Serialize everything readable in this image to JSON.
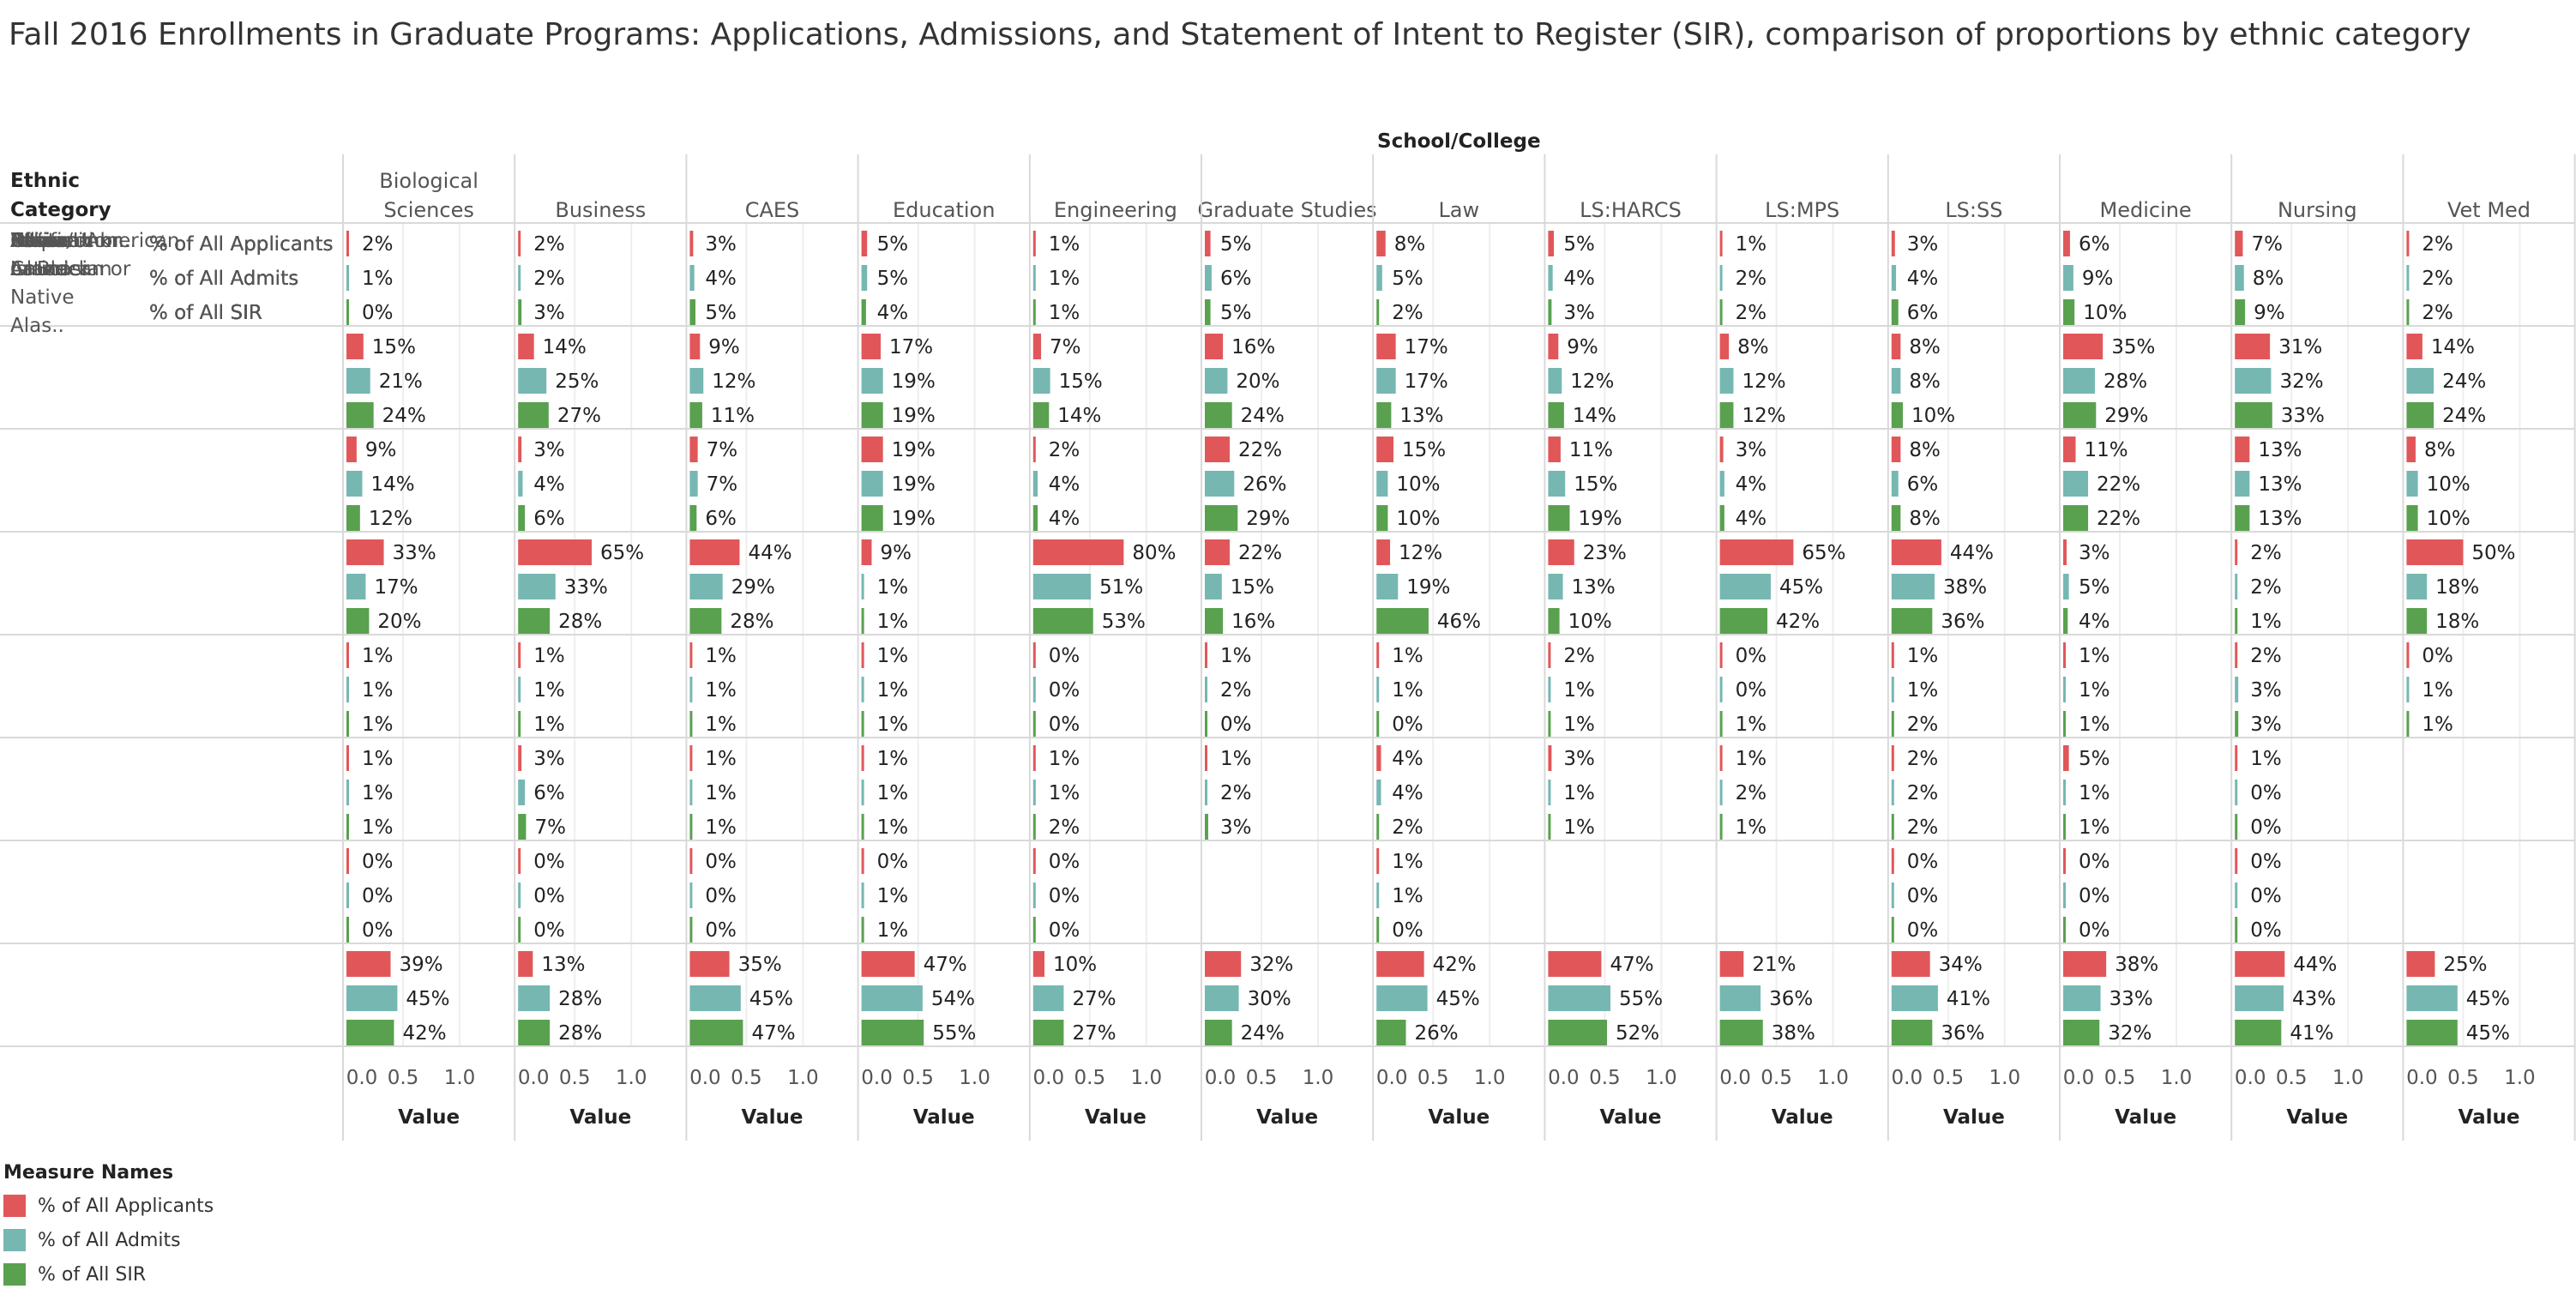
{
  "title": "Fall 2016 Enrollments in Graduate Programs:  Applications, Admissions, and Statement of Intent to Register (SIR), comparison of proportions by ethnic category",
  "legend": {
    "title": "Measure Names",
    "items": [
      {
        "label": "% of All Applicants",
        "color": "#e15759"
      },
      {
        "label": "% of All Admits",
        "color": "#76b7b2"
      },
      {
        "label": "% of All SIR",
        "color": "#59a14f"
      }
    ]
  },
  "chart_data": {
    "type": "bar",
    "orientation": "horizontal",
    "column_header": "School/College",
    "row_header": "Ethnic Category",
    "axis_title": "Value",
    "xlim": [
      0,
      1.0
    ],
    "ticks": [
      "0.0",
      "0.5",
      "1.0"
    ],
    "grid": true,
    "legend_position": "bottom-left",
    "colleges": [
      "Biological Sciences",
      "Business",
      "CAES",
      "Education",
      "Engineering",
      "Graduate Studies",
      "Law",
      "LS:HARCS",
      "LS:MPS",
      "LS:SS",
      "Medicine",
      "Nursing",
      "Vet Med"
    ],
    "measures": [
      {
        "name": "% of All Applicants",
        "color": "#e15759"
      },
      {
        "name": "% of All Admits",
        "color": "#76b7b2"
      },
      {
        "name": "% of All SIR",
        "color": "#59a14f"
      }
    ],
    "categories": [
      {
        "label": "African-American or Black",
        "values": [
          [
            0.02,
            0.01,
            0.0
          ],
          [
            0.02,
            0.02,
            0.03
          ],
          [
            0.03,
            0.04,
            0.05
          ],
          [
            0.05,
            0.05,
            0.04
          ],
          [
            0.01,
            0.01,
            0.01
          ],
          [
            0.05,
            0.06,
            0.05
          ],
          [
            0.08,
            0.05,
            0.02
          ],
          [
            0.05,
            0.04,
            0.03
          ],
          [
            0.01,
            0.02,
            0.02
          ],
          [
            0.03,
            0.04,
            0.06
          ],
          [
            0.06,
            0.09,
            0.1
          ],
          [
            0.07,
            0.08,
            0.09
          ],
          [
            0.02,
            0.02,
            0.02
          ]
        ]
      },
      {
        "label": "Asian",
        "values": [
          [
            0.15,
            0.21,
            0.24
          ],
          [
            0.14,
            0.25,
            0.27
          ],
          [
            0.09,
            0.12,
            0.11
          ],
          [
            0.17,
            0.19,
            0.19
          ],
          [
            0.07,
            0.15,
            0.14
          ],
          [
            0.16,
            0.2,
            0.24
          ],
          [
            0.17,
            0.17,
            0.13
          ],
          [
            0.09,
            0.12,
            0.14
          ],
          [
            0.08,
            0.12,
            0.12
          ],
          [
            0.08,
            0.08,
            0.1
          ],
          [
            0.35,
            0.28,
            0.29
          ],
          [
            0.31,
            0.32,
            0.33
          ],
          [
            0.14,
            0.24,
            0.24
          ]
        ]
      },
      {
        "label": "Hispanic or Latino",
        "values": [
          [
            0.09,
            0.14,
            0.12
          ],
          [
            0.03,
            0.04,
            0.06
          ],
          [
            0.07,
            0.07,
            0.06
          ],
          [
            0.19,
            0.19,
            0.19
          ],
          [
            0.02,
            0.04,
            0.04
          ],
          [
            0.22,
            0.26,
            0.29
          ],
          [
            0.15,
            0.1,
            0.1
          ],
          [
            0.11,
            0.15,
            0.19
          ],
          [
            0.03,
            0.04,
            0.04
          ],
          [
            0.08,
            0.06,
            0.08
          ],
          [
            0.11,
            0.22,
            0.22
          ],
          [
            0.13,
            0.13,
            0.13
          ],
          [
            0.08,
            0.1,
            0.1
          ]
        ]
      },
      {
        "label": "Internation..",
        "values": [
          [
            0.33,
            0.17,
            0.2
          ],
          [
            0.65,
            0.33,
            0.28
          ],
          [
            0.44,
            0.29,
            0.28
          ],
          [
            0.09,
            0.01,
            0.01
          ],
          [
            0.8,
            0.51,
            0.53
          ],
          [
            0.22,
            0.15,
            0.16
          ],
          [
            0.12,
            0.19,
            0.46
          ],
          [
            0.23,
            0.13,
            0.1
          ],
          [
            0.65,
            0.45,
            0.42
          ],
          [
            0.44,
            0.38,
            0.36
          ],
          [
            0.03,
            0.05,
            0.04
          ],
          [
            0.02,
            0.02,
            0.01
          ],
          [
            0.5,
            0.18,
            0.18
          ]
        ]
      },
      {
        "label": "Native American or Native Alas..",
        "values": [
          [
            0.01,
            0.01,
            0.01
          ],
          [
            0.01,
            0.01,
            0.01
          ],
          [
            0.01,
            0.01,
            0.01
          ],
          [
            0.01,
            0.01,
            0.01
          ],
          [
            0.0,
            0.0,
            0.0
          ],
          [
            0.01,
            0.02,
            0.0
          ],
          [
            0.01,
            0.01,
            0.0
          ],
          [
            0.02,
            0.01,
            0.01
          ],
          [
            0.0,
            0.0,
            0.01
          ],
          [
            0.01,
            0.01,
            0.02
          ],
          [
            0.01,
            0.01,
            0.01
          ],
          [
            0.02,
            0.03,
            0.03
          ],
          [
            0.0,
            0.01,
            0.01
          ]
        ]
      },
      {
        "label": "Other/Unkn..",
        "values": [
          [
            0.01,
            0.01,
            0.01
          ],
          [
            0.03,
            0.06,
            0.07
          ],
          [
            0.01,
            0.01,
            0.01
          ],
          [
            0.01,
            0.01,
            0.01
          ],
          [
            0.01,
            0.01,
            0.02
          ],
          [
            0.01,
            0.02,
            0.03
          ],
          [
            0.04,
            0.04,
            0.02
          ],
          [
            0.03,
            0.01,
            0.01
          ],
          [
            0.01,
            0.02,
            0.01
          ],
          [
            0.02,
            0.02,
            0.02
          ],
          [
            0.05,
            0.01,
            0.01
          ],
          [
            0.01,
            0.0,
            0.0
          ],
          [
            null,
            null,
            null
          ]
        ]
      },
      {
        "label": "Pacific Islander",
        "values": [
          [
            0.0,
            0.0,
            0.0
          ],
          [
            0.0,
            0.0,
            0.0
          ],
          [
            0.0,
            0.0,
            0.0
          ],
          [
            0.0,
            0.01,
            0.01
          ],
          [
            0.0,
            0.0,
            0.0
          ],
          [
            null,
            null,
            null
          ],
          [
            0.01,
            0.01,
            0.0
          ],
          [
            null,
            null,
            null
          ],
          [
            null,
            null,
            null
          ],
          [
            0.0,
            0.0,
            0.0
          ],
          [
            0.0,
            0.0,
            0.0
          ],
          [
            0.0,
            0.0,
            0.0
          ],
          [
            null,
            null,
            null
          ]
        ]
      },
      {
        "label": "White or Caucasian",
        "values": [
          [
            0.39,
            0.45,
            0.42
          ],
          [
            0.13,
            0.28,
            0.28
          ],
          [
            0.35,
            0.45,
            0.47
          ],
          [
            0.47,
            0.54,
            0.55
          ],
          [
            0.1,
            0.27,
            0.27
          ],
          [
            0.32,
            0.3,
            0.24
          ],
          [
            0.42,
            0.45,
            0.26
          ],
          [
            0.47,
            0.55,
            0.52
          ],
          [
            0.21,
            0.36,
            0.38
          ],
          [
            0.34,
            0.41,
            0.36
          ],
          [
            0.38,
            0.33,
            0.32
          ],
          [
            0.44,
            0.43,
            0.41
          ],
          [
            0.25,
            0.45,
            0.45
          ]
        ]
      }
    ]
  }
}
